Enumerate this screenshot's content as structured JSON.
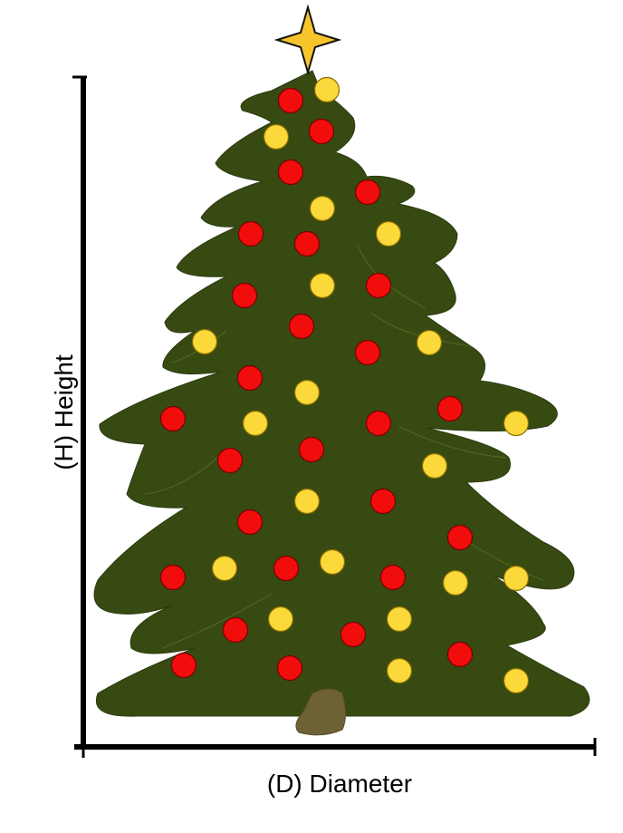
{
  "axes": {
    "y_label": "(H) Height",
    "x_label": "(D) Diameter"
  }
}
